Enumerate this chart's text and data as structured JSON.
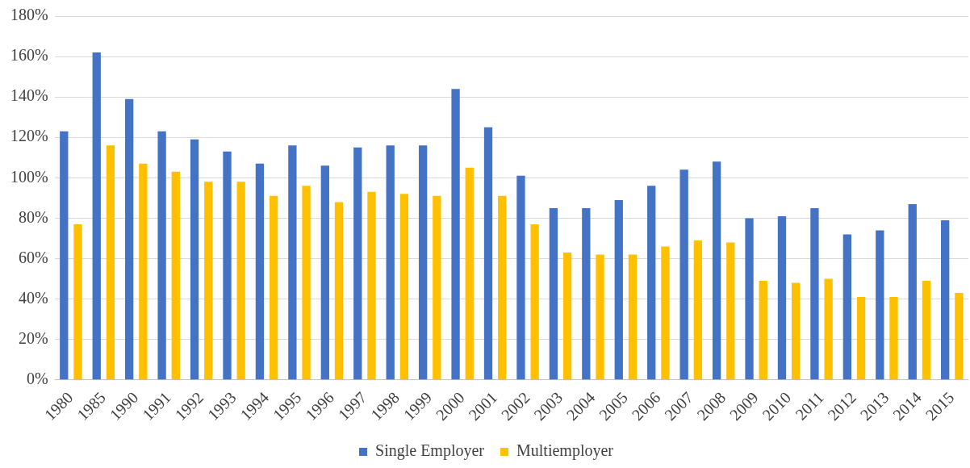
{
  "chart_data": {
    "type": "bar",
    "categories": [
      "1980",
      "1985",
      "1990",
      "1991",
      "1992",
      "1993",
      "1994",
      "1995",
      "1996",
      "1997",
      "1998",
      "1999",
      "2000",
      "2001",
      "2002",
      "2003",
      "2004",
      "2005",
      "2006",
      "2007",
      "2008",
      "2009",
      "2010",
      "2011",
      "2012",
      "2013",
      "2014",
      "2015"
    ],
    "series": [
      {
        "name": "Single Employer",
        "color": "#4472c4",
        "values": [
          123,
          162,
          139,
          123,
          119,
          113,
          107,
          116,
          106,
          115,
          116,
          116,
          144,
          125,
          101,
          85,
          85,
          89,
          96,
          104,
          108,
          80,
          81,
          85,
          72,
          74,
          87,
          79
        ]
      },
      {
        "name": "Multiemployer",
        "color": "#ffc000",
        "values": [
          77,
          116,
          107,
          103,
          98,
          98,
          91,
          96,
          88,
          93,
          92,
          91,
          105,
          91,
          77,
          63,
          62,
          62,
          66,
          69,
          68,
          49,
          48,
          50,
          41,
          41,
          49,
          43
        ]
      }
    ],
    "ylim": [
      0,
      180
    ],
    "yticks": [
      {
        "value": 0,
        "label": "0%"
      },
      {
        "value": 20,
        "label": "20%"
      },
      {
        "value": 40,
        "label": "40%"
      },
      {
        "value": 60,
        "label": "60%"
      },
      {
        "value": 80,
        "label": "80%"
      },
      {
        "value": 100,
        "label": "100%"
      },
      {
        "value": 120,
        "label": "120%"
      },
      {
        "value": 140,
        "label": "140%"
      },
      {
        "value": 160,
        "label": "160%"
      },
      {
        "value": 180,
        "label": "180%"
      }
    ],
    "grid": "y",
    "legend": "bottom"
  }
}
